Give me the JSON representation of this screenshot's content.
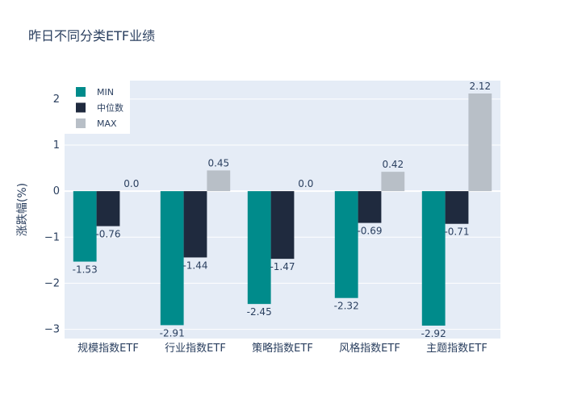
{
  "chart_data": {
    "type": "bar",
    "title": "昨日不同分类ETF业绩",
    "xlabel": "",
    "ylabel": "涨跌幅(%)",
    "categories": [
      "规模指数ETF",
      "行业指数ETF",
      "策略指数ETF",
      "风格指数ETF",
      "主题指数ETF"
    ],
    "series": [
      {
        "name": "MIN",
        "color": "#008b8b",
        "values": [
          -1.53,
          -2.91,
          -2.45,
          -2.32,
          -2.92
        ],
        "labels": [
          "-1.53",
          "-2.91",
          "-2.45",
          "-2.32",
          "-2.92"
        ]
      },
      {
        "name": "中位数",
        "color": "#1f2a3e",
        "values": [
          -0.76,
          -1.44,
          -1.47,
          -0.69,
          -0.71
        ],
        "labels": [
          "-0.76",
          "-1.44",
          "-1.47",
          "-0.69",
          "-0.71"
        ]
      },
      {
        "name": "MAX",
        "color": "#b8bfc7",
        "values": [
          0.0,
          0.45,
          0.0,
          0.42,
          2.12
        ],
        "labels": [
          "0.0",
          "0.45",
          "0.0",
          "0.42",
          "2.12"
        ]
      }
    ],
    "yticks": [
      2,
      1,
      0,
      -1,
      -2,
      -3
    ],
    "ytick_labels": [
      "2",
      "1",
      "0",
      "−1",
      "−2",
      "−3"
    ],
    "ylim": [
      -3.2,
      2.4
    ],
    "grid": true,
    "legend": "top-left",
    "plot_bg": "#e5ecf6",
    "text_color": "#2a3f5f"
  }
}
